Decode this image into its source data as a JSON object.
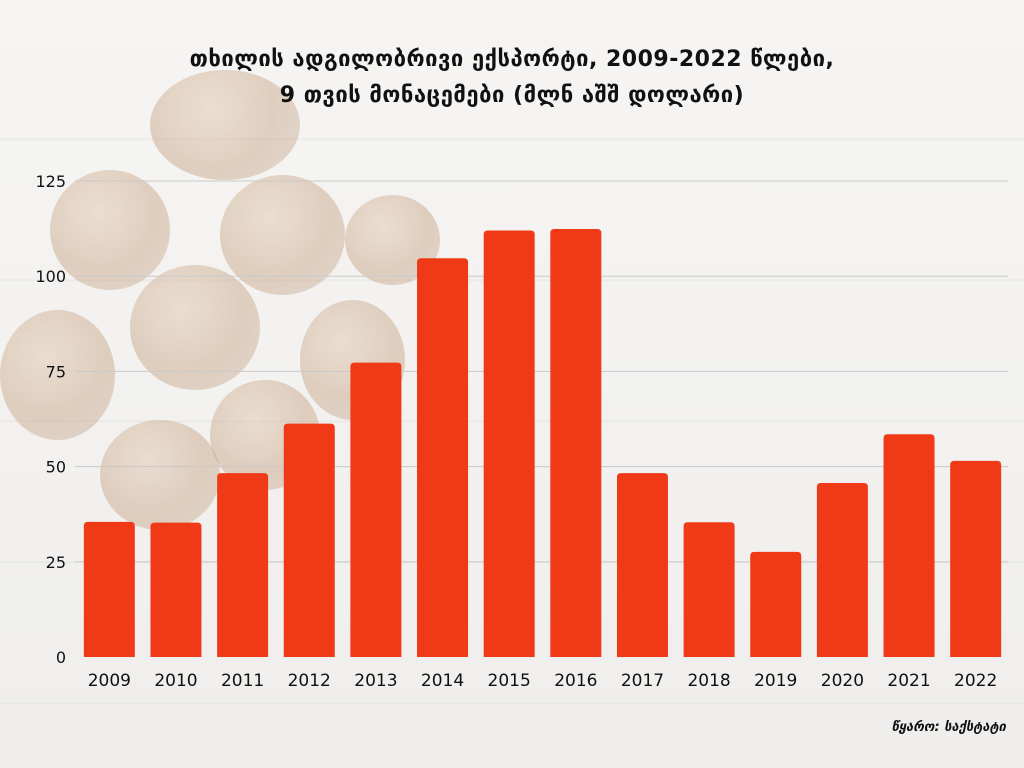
{
  "title_line1": "თხილის ადგილობრივი ექსპორტი, 2009-2022 წლები,",
  "title_line2": "9 თვის მონაცემები (მლნ აშშ დოლარი)",
  "source": "წყარო: საქსტატი",
  "colors": {
    "bar": "#f03a17",
    "grid": "#c9c9c9",
    "text": "#111111"
  },
  "chart_data": {
    "type": "bar",
    "title": "თხილის ადგილობრივი ექსპორტი, 2009-2022 წლები, 9 თვის მონაცემები (მლნ აშშ დოლარი)",
    "categories": [
      "2009",
      "2010",
      "2011",
      "2012",
      "2013",
      "2014",
      "2015",
      "2016",
      "2017",
      "2018",
      "2019",
      "2020",
      "2021",
      "2022"
    ],
    "values": [
      35.5,
      35.3,
      48.3,
      61.3,
      77.3,
      104.7,
      112.0,
      112.4,
      48.3,
      35.4,
      27.6,
      45.7,
      58.5,
      51.5
    ],
    "ylim": [
      0,
      125
    ],
    "yticks": [
      0,
      25,
      50,
      75,
      100,
      125
    ],
    "xlabel": "",
    "ylabel": "",
    "grid": true,
    "legend": "none"
  }
}
